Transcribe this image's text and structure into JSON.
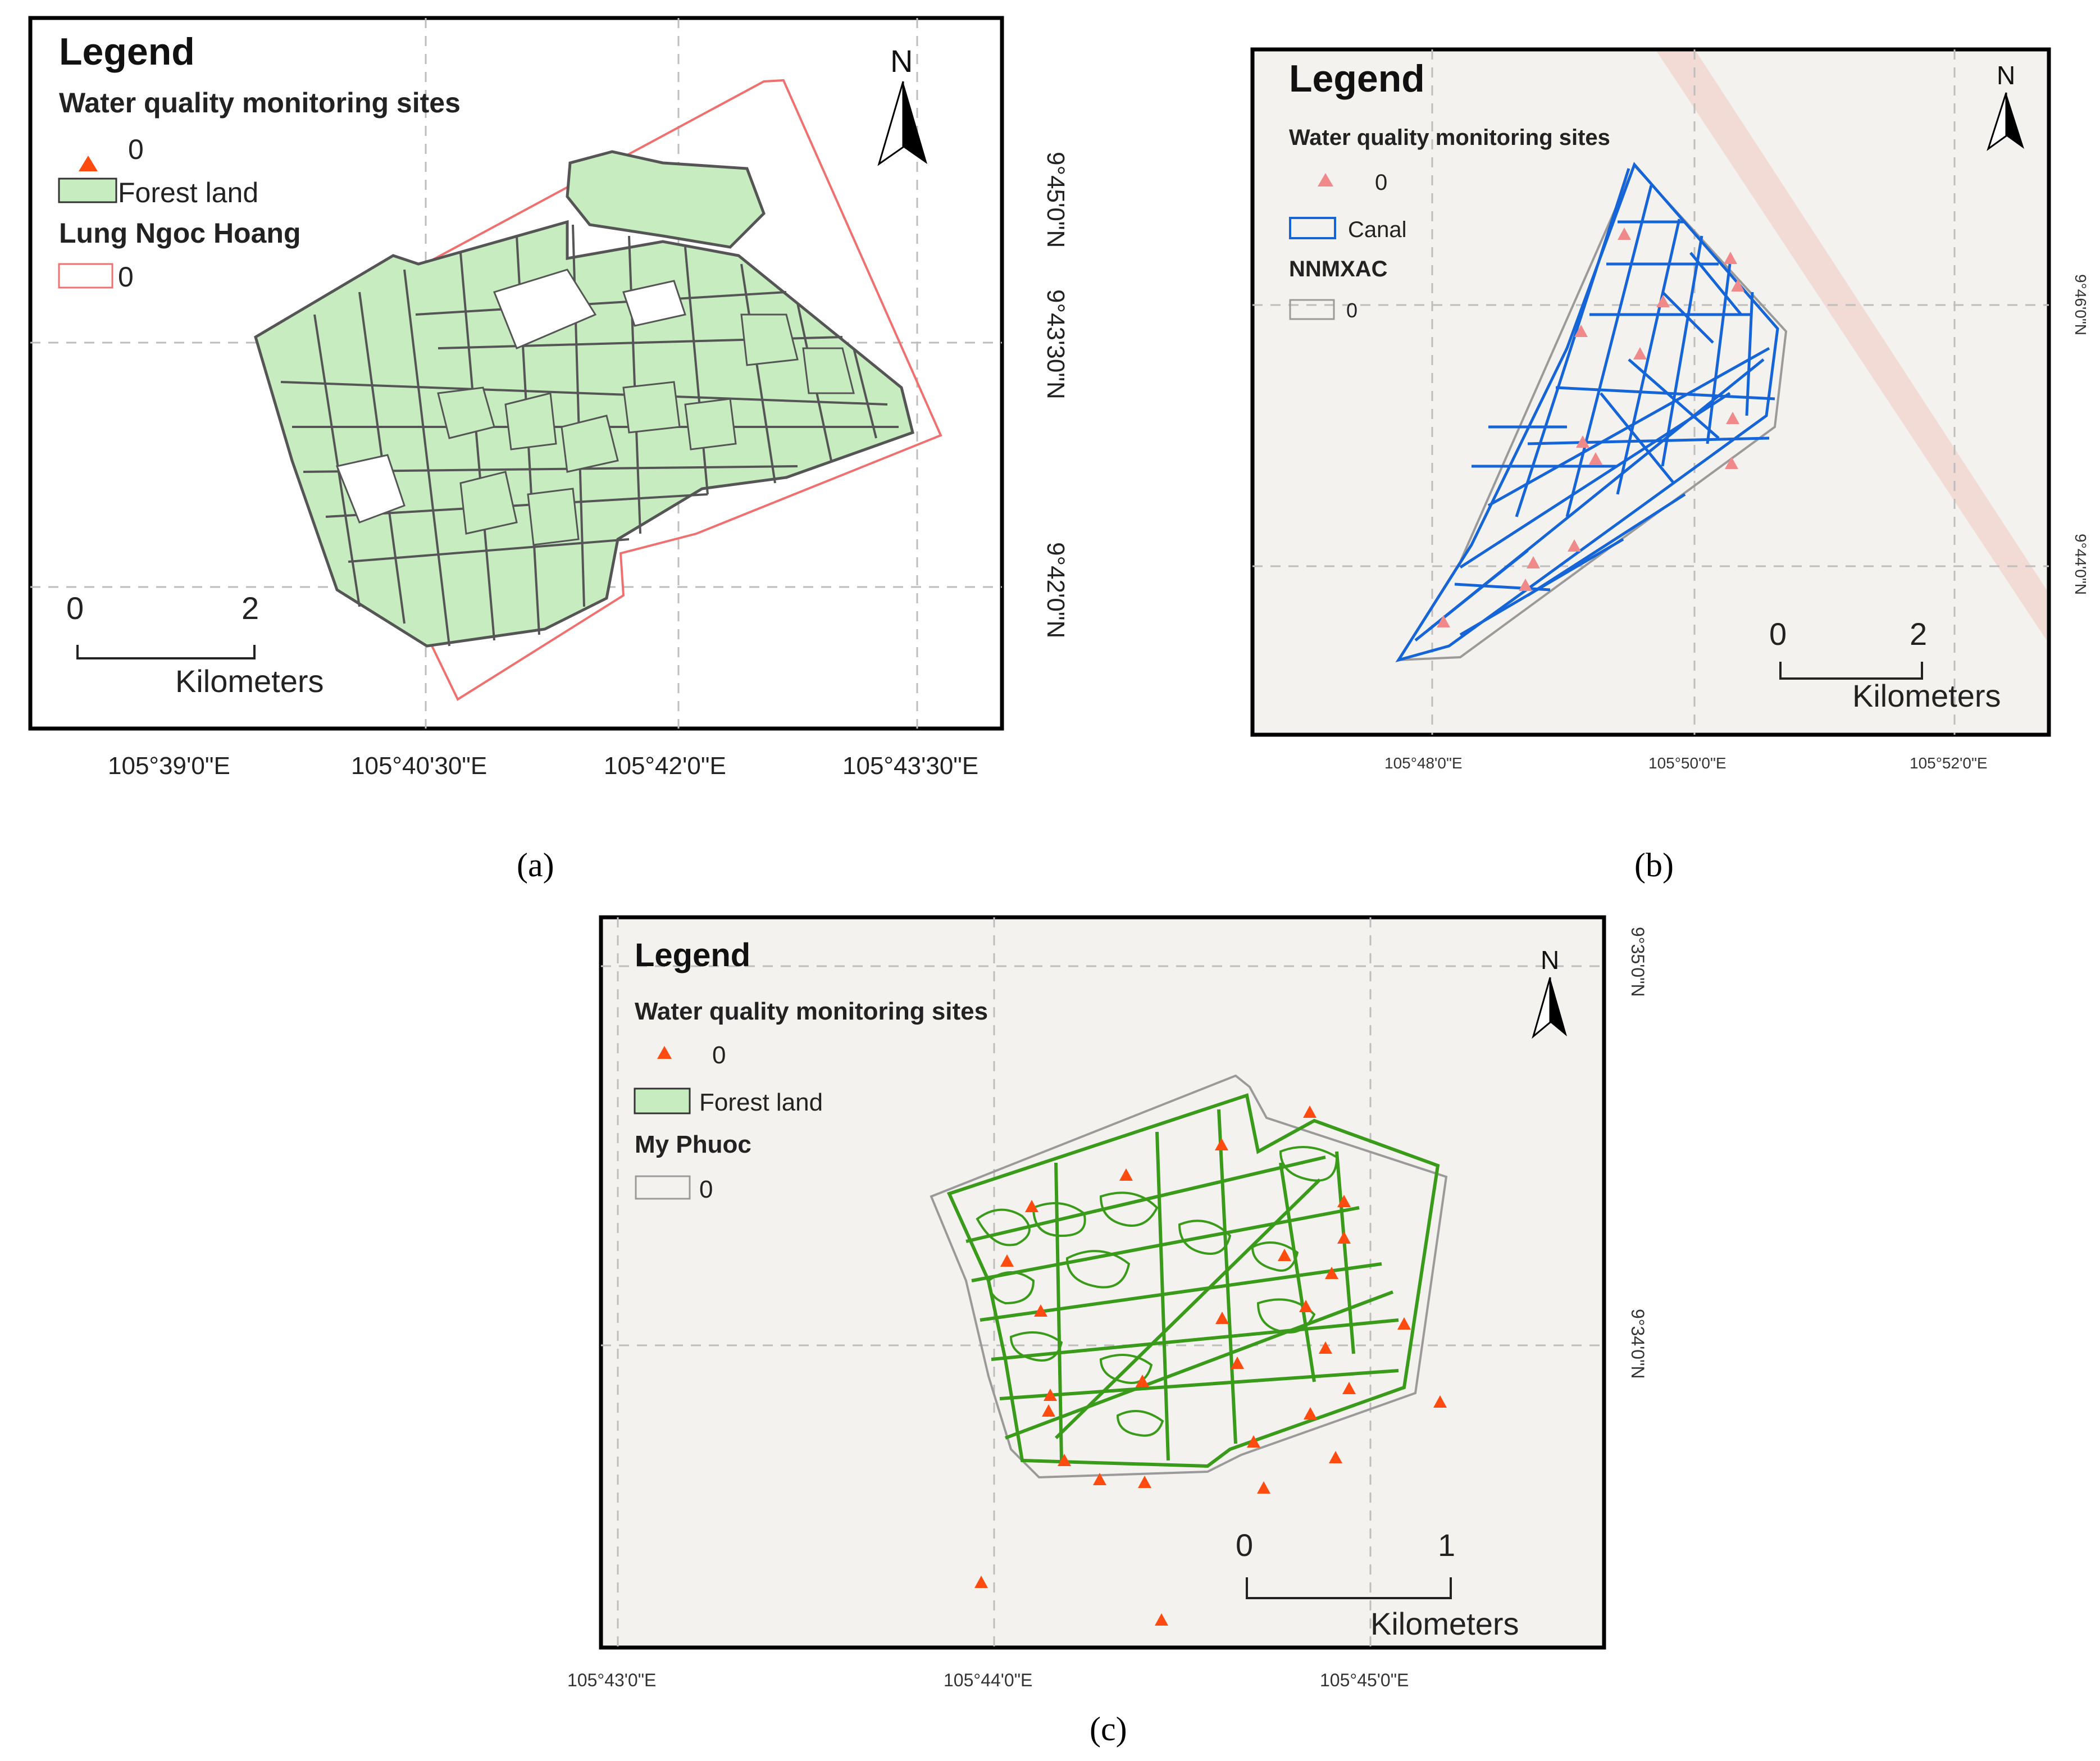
{
  "panels": [
    {
      "id": "a",
      "label": "(a)",
      "legend_title": "Legend",
      "legend_items": [
        {
          "type": "heading",
          "text": "Water quality monitoring sites"
        },
        {
          "type": "triangle",
          "text": "0",
          "color": "#ff4a10"
        },
        {
          "type": "fill-box",
          "text": "Forest land",
          "color": "#c6ecc0"
        },
        {
          "type": "heading",
          "text": "Lung Ngoc Hoang"
        },
        {
          "type": "outline-box",
          "text": "0",
          "color": "#f07070"
        }
      ],
      "north": "N",
      "scale_bar": {
        "start": "0",
        "end": "2",
        "unit": "Kilometers"
      },
      "x_ticks": [
        "105°39'0\"E",
        "105°40'30\"E",
        "105°42'0\"E",
        "105°43'30\"E"
      ],
      "y_ticks": [
        "9°45'0\"N",
        "9°43'30\"N",
        "9°42'0\"N"
      ]
    },
    {
      "id": "b",
      "label": "(b)",
      "legend_title": "Legend",
      "legend_items": [
        {
          "type": "heading",
          "text": "Water quality monitoring sites"
        },
        {
          "type": "triangle",
          "text": "0",
          "color": "#f08a8a"
        },
        {
          "type": "outline-box",
          "text": "Canal",
          "color": "#1565d8"
        },
        {
          "type": "heading",
          "text": "NNMXAC"
        },
        {
          "type": "outline-box",
          "text": "0",
          "color": "#9a9a9a"
        }
      ],
      "north": "N",
      "scale_bar": {
        "start": "0",
        "end": "2",
        "unit": "Kilometers"
      },
      "x_ticks": [
        "105°48'0\"E",
        "105°50'0\"E",
        "105°52'0\"E"
      ],
      "y_ticks": [
        "9°46'0\"N",
        "9°44'0\"N"
      ]
    },
    {
      "id": "c",
      "label": "(c)",
      "legend_title": "Legend",
      "legend_items": [
        {
          "type": "heading",
          "text": "Water quality monitoring sites"
        },
        {
          "type": "triangle",
          "text": "0",
          "color": "#ff4a10"
        },
        {
          "type": "fill-box",
          "text": "Forest land",
          "color": "#c6ecc0"
        },
        {
          "type": "heading",
          "text": "My Phuoc"
        },
        {
          "type": "outline-box",
          "text": "0",
          "color": "#9a9a9a"
        }
      ],
      "north": "N",
      "scale_bar": {
        "start": "0",
        "end": "1",
        "unit": "Kilometers"
      },
      "x_ticks": [
        "105°43'0\"E",
        "105°44'0\"E",
        "105°45'0\"E"
      ],
      "y_ticks": [
        "9°35'0\"N",
        "9°34'0\"N"
      ]
    }
  ],
  "colors": {
    "forest_fill": "#c6ecc0",
    "forest_lines": "#555555",
    "boundary_a": "#f07070",
    "canal": "#1565d8",
    "boundary_grey": "#9a9a9a",
    "site_marker": "#ff4a10",
    "site_marker_b": "#f08a8a",
    "green_outline": "#3a9a1a"
  }
}
